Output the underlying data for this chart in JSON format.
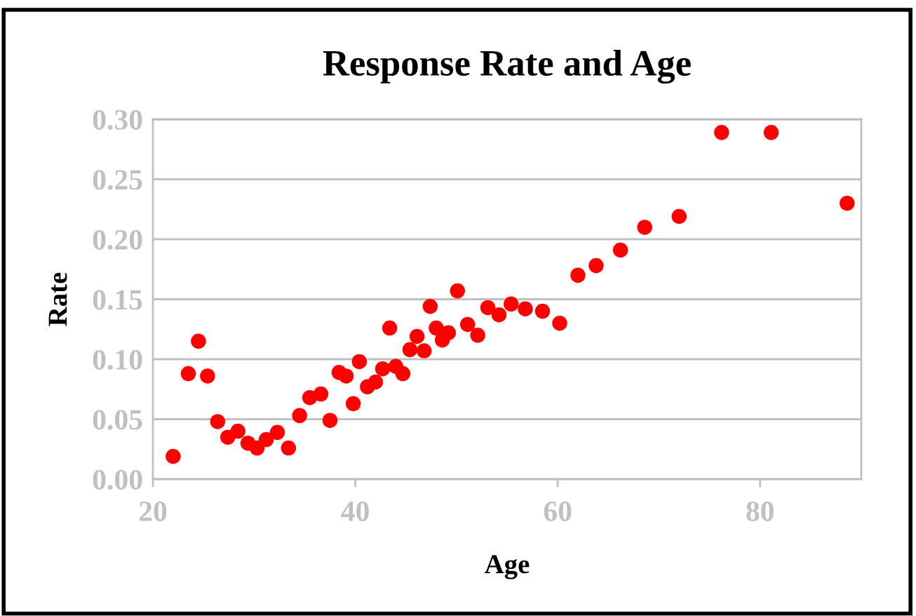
{
  "chart_data": {
    "type": "scatter",
    "title": "Response Rate and Age",
    "xlabel": "Age",
    "ylabel": "Rate",
    "xlim": [
      20,
      90
    ],
    "xticks": [
      20,
      40,
      60,
      80
    ],
    "ylim": [
      0,
      0.3
    ],
    "yticks": [
      {
        "value": 0,
        "label": "0.00"
      },
      {
        "value": 0.05,
        "label": "0.05"
      },
      {
        "value": 0.1,
        "label": "0.10"
      },
      {
        "value": 0.15,
        "label": "0.15"
      },
      {
        "value": 0.2,
        "label": "0.20"
      },
      {
        "value": 0.25,
        "label": "0.25"
      },
      {
        "value": 0.3,
        "label": "0.30"
      }
    ],
    "grid": "y",
    "marker": "circle",
    "series": [
      {
        "color": "#ff0000",
        "x": [
          22.0,
          23.5,
          24.5,
          25.4,
          26.4,
          27.4,
          28.4,
          29.4,
          30.3,
          31.2,
          32.3,
          33.4,
          34.5,
          35.5,
          36.6,
          37.5,
          38.4,
          39.1,
          39.8,
          40.4,
          41.2,
          42.0,
          42.7,
          43.4,
          44.0,
          44.7,
          45.4,
          46.1,
          46.8,
          47.4,
          48.0,
          48.6,
          49.2,
          50.1,
          51.1,
          52.1,
          53.1,
          54.2,
          55.4,
          56.8,
          58.5,
          60.2,
          62.0,
          63.8,
          66.2,
          68.6,
          72.0,
          76.2,
          81.1,
          88.6
        ],
        "values": [
          0.019,
          0.088,
          0.115,
          0.086,
          0.048,
          0.035,
          0.04,
          0.03,
          0.026,
          0.033,
          0.039,
          0.026,
          0.053,
          0.068,
          0.071,
          0.049,
          0.089,
          0.086,
          0.063,
          0.098,
          0.077,
          0.081,
          0.092,
          0.126,
          0.094,
          0.088,
          0.108,
          0.119,
          0.107,
          0.144,
          0.126,
          0.116,
          0.122,
          0.157,
          0.129,
          0.12,
          0.143,
          0.137,
          0.146,
          0.142,
          0.14,
          0.13,
          0.17,
          0.178,
          0.191,
          0.21,
          0.219,
          0.289,
          0.289,
          0.23
        ]
      }
    ]
  }
}
